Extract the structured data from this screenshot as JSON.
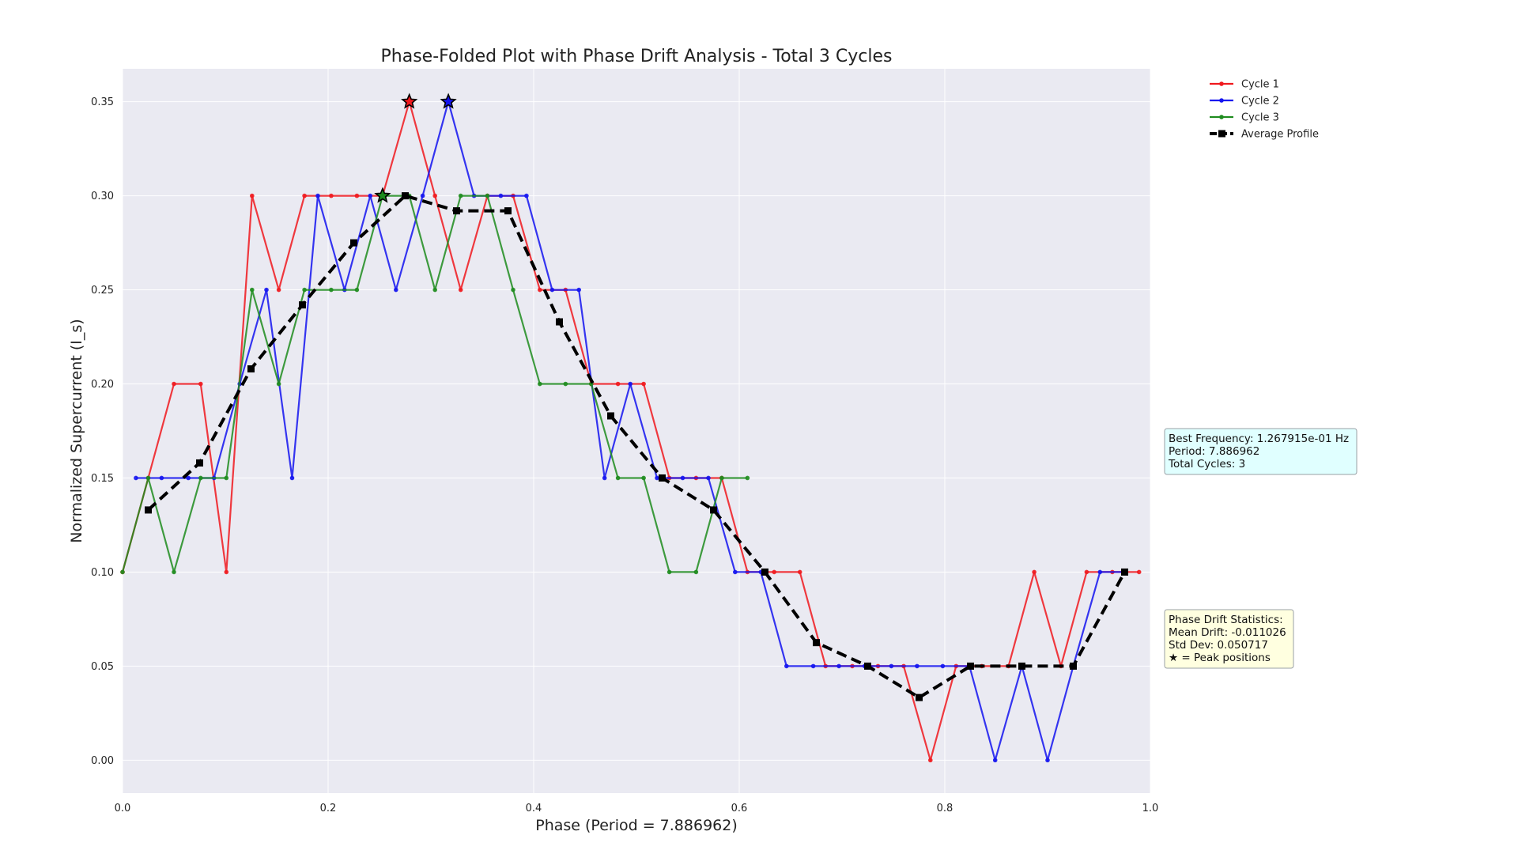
{
  "chart_data": {
    "type": "line",
    "title": "Phase-Folded Plot with Phase Drift Analysis - Total 3 Cycles",
    "xlabel": "Phase (Period = 7.886962)",
    "ylabel": "Normalized Supercurrent (I_s)",
    "xlim": [
      0.0,
      1.0
    ],
    "ylim": [
      -0.0175,
      0.3675
    ],
    "xticks": [
      "0.0",
      "0.2",
      "0.4",
      "0.6",
      "0.8",
      "1.0"
    ],
    "yticks": [
      "0.00",
      "0.05",
      "0.10",
      "0.15",
      "0.20",
      "0.25",
      "0.30",
      "0.35"
    ],
    "grid": true,
    "legend_position": "upper right, outside plot",
    "series": [
      {
        "name": "Cycle 1",
        "color": "#f0191e",
        "x": [
          0.0,
          0.025,
          0.05,
          0.076,
          0.101,
          0.126,
          0.152,
          0.177,
          0.203,
          0.228,
          0.253,
          0.279,
          0.304,
          0.329,
          0.355,
          0.38,
          0.406,
          0.431,
          0.456,
          0.482,
          0.507,
          0.532,
          0.558,
          0.583,
          0.608,
          0.634,
          0.659,
          0.684,
          0.71,
          0.735,
          0.76,
          0.786,
          0.811,
          0.836,
          0.862,
          0.887,
          0.913,
          0.938,
          0.963,
          0.989
        ],
        "y": [
          0.1,
          0.15,
          0.2,
          0.2,
          0.1,
          0.3,
          0.25,
          0.3,
          0.3,
          0.3,
          0.3,
          0.35,
          0.3,
          0.25,
          0.3,
          0.3,
          0.25,
          0.25,
          0.2,
          0.2,
          0.2,
          0.15,
          0.15,
          0.15,
          0.1,
          0.1,
          0.1,
          0.05,
          0.05,
          0.05,
          0.05,
          0.0,
          0.05,
          0.05,
          0.05,
          0.1,
          0.05,
          0.1,
          0.1,
          0.1
        ]
      },
      {
        "name": "Cycle 2",
        "color": "#1414f0",
        "x": [
          0.013,
          0.038,
          0.064,
          0.089,
          0.114,
          0.14,
          0.165,
          0.19,
          0.216,
          0.241,
          0.266,
          0.292,
          0.317,
          0.342,
          0.368,
          0.393,
          0.418,
          0.444,
          0.469,
          0.494,
          0.52,
          0.545,
          0.57,
          0.596,
          0.621,
          0.646,
          0.672,
          0.697,
          0.722,
          0.748,
          0.773,
          0.798,
          0.824,
          0.849,
          0.875,
          0.9,
          0.925,
          0.951,
          0.976
        ],
        "y": [
          0.15,
          0.15,
          0.15,
          0.15,
          0.2,
          0.25,
          0.15,
          0.3,
          0.25,
          0.3,
          0.25,
          0.3,
          0.35,
          0.3,
          0.3,
          0.3,
          0.25,
          0.25,
          0.15,
          0.2,
          0.15,
          0.15,
          0.15,
          0.1,
          0.1,
          0.05,
          0.05,
          0.05,
          0.05,
          0.05,
          0.05,
          0.05,
          0.05,
          0.0,
          0.05,
          0.0,
          0.05,
          0.1,
          0.1
        ]
      },
      {
        "name": "Cycle 3",
        "color": "#1e8c1e",
        "x": [
          0.0,
          0.025,
          0.05,
          0.076,
          0.101,
          0.126,
          0.152,
          0.177,
          0.203,
          0.228,
          0.253,
          0.279,
          0.304,
          0.329,
          0.355,
          0.38,
          0.406,
          0.431,
          0.456,
          0.482,
          0.507,
          0.532,
          0.558,
          0.583,
          0.608
        ],
        "y": [
          0.1,
          0.15,
          0.1,
          0.15,
          0.15,
          0.25,
          0.2,
          0.25,
          0.25,
          0.25,
          0.3,
          0.3,
          0.25,
          0.3,
          0.3,
          0.25,
          0.2,
          0.2,
          0.2,
          0.15,
          0.15,
          0.1,
          0.1,
          0.15,
          0.15
        ]
      },
      {
        "name": "Average Profile",
        "color": "#000000",
        "x": [
          0.025,
          0.075,
          0.125,
          0.175,
          0.225,
          0.275,
          0.325,
          0.375,
          0.425,
          0.475,
          0.525,
          0.575,
          0.625,
          0.675,
          0.725,
          0.775,
          0.825,
          0.875,
          0.925,
          0.975
        ],
        "y": [
          0.133,
          0.158,
          0.208,
          0.242,
          0.275,
          0.3,
          0.292,
          0.292,
          0.233,
          0.183,
          0.15,
          0.133,
          0.1,
          0.0625,
          0.05,
          0.0333,
          0.05,
          0.05,
          0.05,
          0.1
        ]
      }
    ],
    "peaks": [
      {
        "series": "Cycle 1",
        "x": 0.279,
        "y": 0.35
      },
      {
        "series": "Cycle 2",
        "x": 0.317,
        "y": 0.35
      },
      {
        "series": "Cycle 3",
        "x": 0.253,
        "y": 0.3
      }
    ],
    "annotations": [
      {
        "lines": [
          "Best Frequency: 1.267915e-01 Hz",
          "Period: 7.886962",
          "Total Cycles: 3"
        ],
        "background": "#e0ffff"
      },
      {
        "lines": [
          "Phase Drift Statistics:",
          "Mean Drift: -0.011026",
          "Std Dev: 0.050717",
          "★ = Peak positions"
        ],
        "background": "#ffffe0"
      }
    ]
  }
}
